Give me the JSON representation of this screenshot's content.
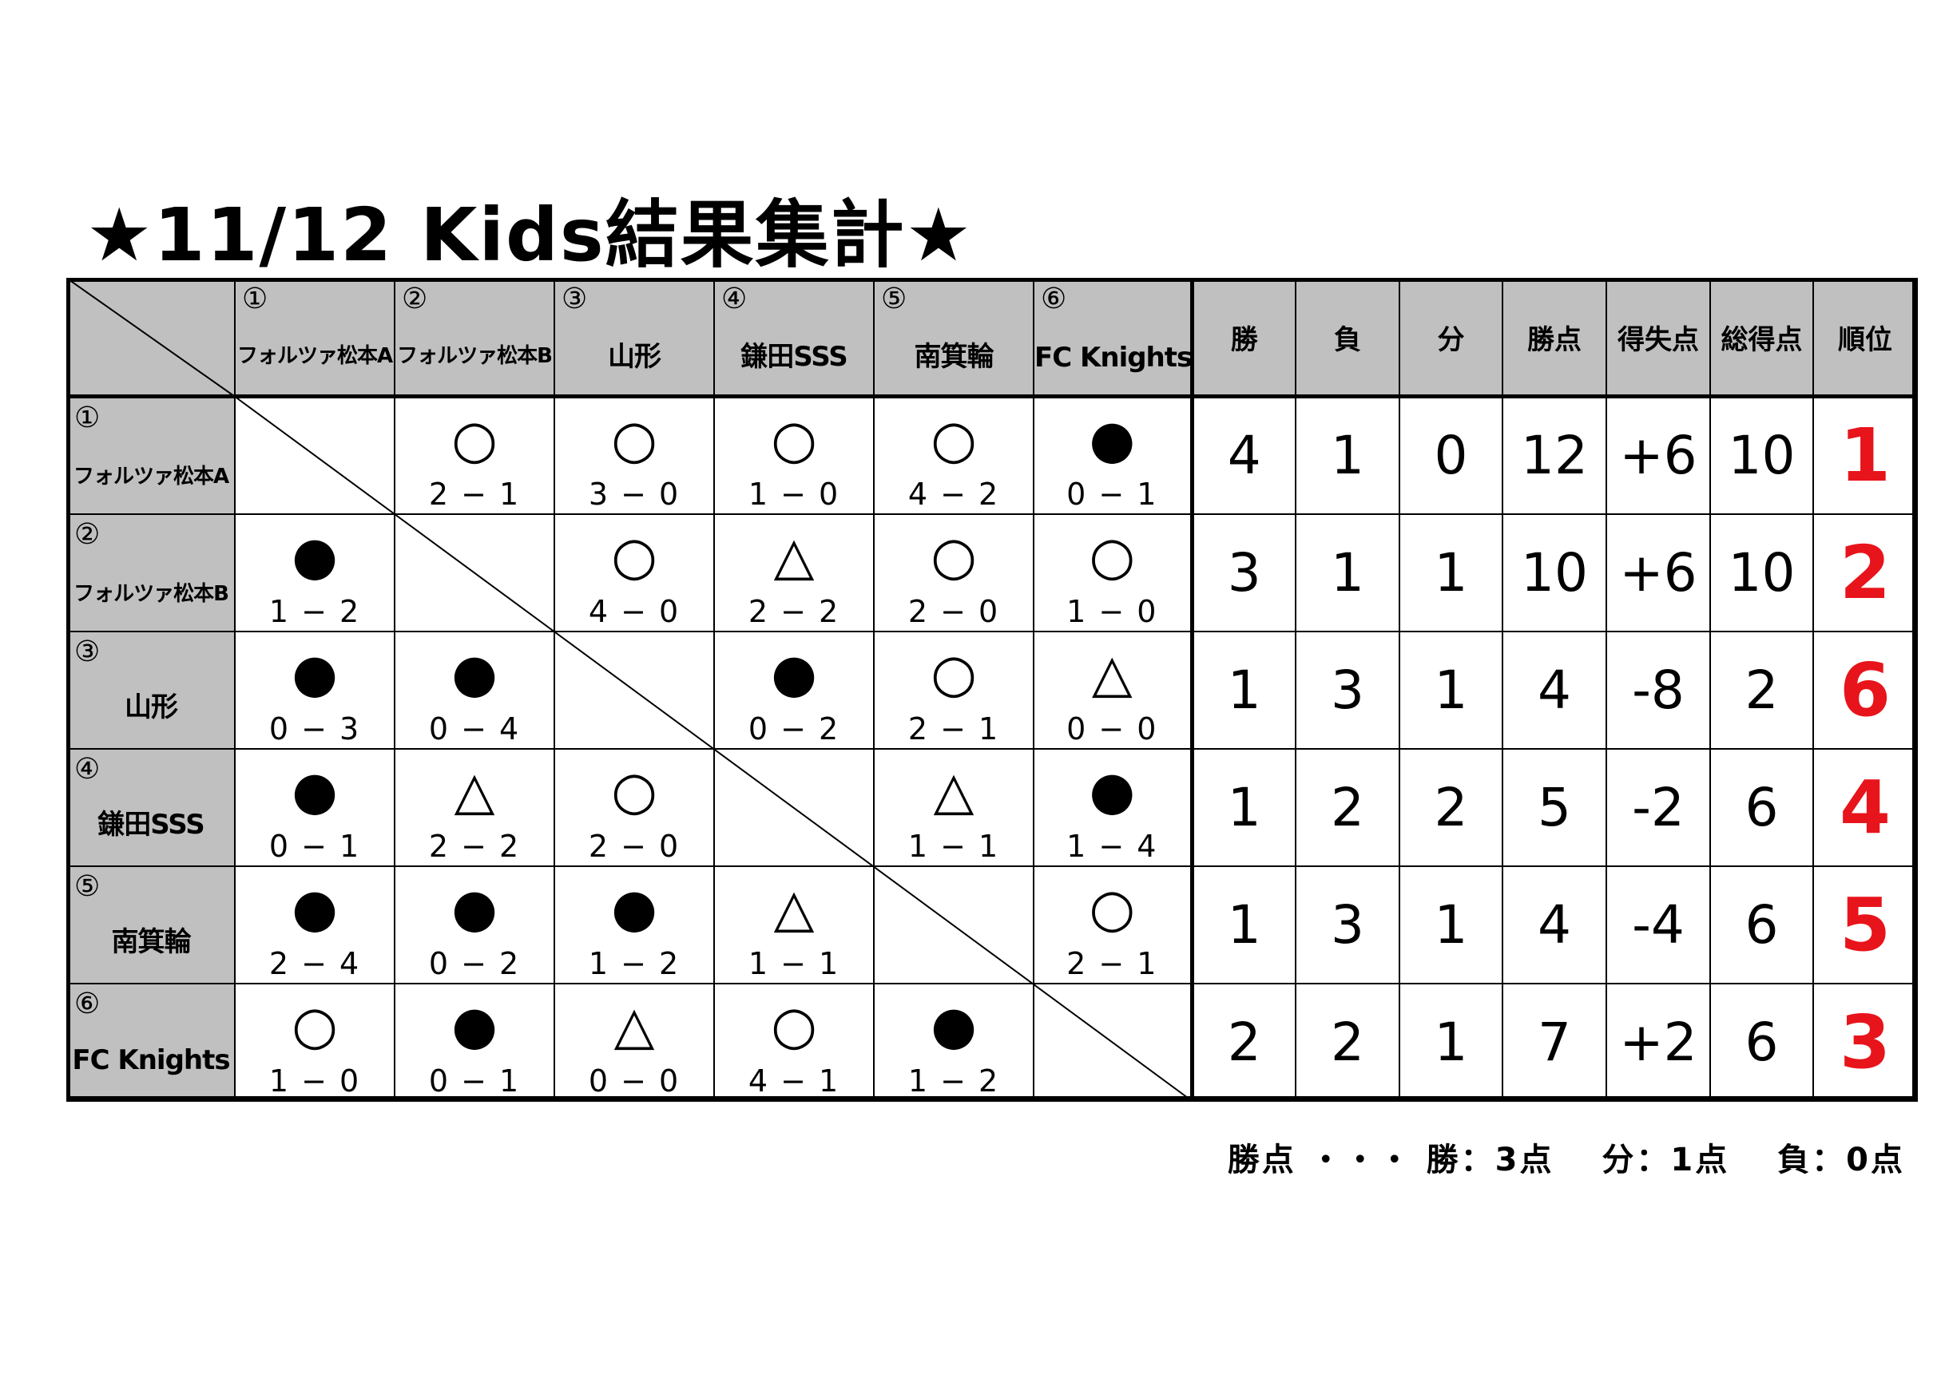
{
  "title": "★11/12  Kids結果集計★",
  "teams": [
    {
      "no": "①",
      "name": "フォルツァ松本A"
    },
    {
      "no": "②",
      "name": "フォルツァ松本B"
    },
    {
      "no": "③",
      "name": "山形"
    },
    {
      "no": "④",
      "name": "鎌田SSS"
    },
    {
      "no": "⑤",
      "name": "南箕輪"
    },
    {
      "no": "⑥",
      "name": "FC Knights"
    }
  ],
  "stat_headers": [
    "勝",
    "負",
    "分",
    "勝点",
    "得失点",
    "総得点",
    "順位"
  ],
  "results": [
    [
      null,
      {
        "mark": "○",
        "score": "2 − 1"
      },
      {
        "mark": "○",
        "score": "3 − 0"
      },
      {
        "mark": "○",
        "score": "1 − 0"
      },
      {
        "mark": "○",
        "score": "4 − 2"
      },
      {
        "mark": "●",
        "score": "0 − 1"
      }
    ],
    [
      {
        "mark": "●",
        "score": "1 − 2"
      },
      null,
      {
        "mark": "○",
        "score": "4 − 0"
      },
      {
        "mark": "△",
        "score": "2 − 2"
      },
      {
        "mark": "○",
        "score": "2 − 0"
      },
      {
        "mark": "○",
        "score": "1 − 0"
      }
    ],
    [
      {
        "mark": "●",
        "score": "0 − 3"
      },
      {
        "mark": "●",
        "score": "0 − 4"
      },
      null,
      {
        "mark": "●",
        "score": "0 − 2"
      },
      {
        "mark": "○",
        "score": "2 − 1"
      },
      {
        "mark": "△",
        "score": "0 − 0"
      }
    ],
    [
      {
        "mark": "●",
        "score": "0 − 1"
      },
      {
        "mark": "△",
        "score": "2 − 2"
      },
      {
        "mark": "○",
        "score": "2 − 0"
      },
      null,
      {
        "mark": "△",
        "score": "1 − 1"
      },
      {
        "mark": "●",
        "score": "1 − 4"
      }
    ],
    [
      {
        "mark": "●",
        "score": "2 − 4"
      },
      {
        "mark": "●",
        "score": "0 − 2"
      },
      {
        "mark": "●",
        "score": "1 − 2"
      },
      {
        "mark": "△",
        "score": "1 − 1"
      },
      null,
      {
        "mark": "○",
        "score": "2 − 1"
      }
    ],
    [
      {
        "mark": "○",
        "score": "1 − 0"
      },
      {
        "mark": "●",
        "score": "0 − 1"
      },
      {
        "mark": "△",
        "score": "0 − 0"
      },
      {
        "mark": "○",
        "score": "4 − 1"
      },
      {
        "mark": "●",
        "score": "1 − 2"
      },
      null
    ]
  ],
  "stats": [
    [
      "4",
      "1",
      "0",
      "12",
      "+6",
      "10",
      "1"
    ],
    [
      "3",
      "1",
      "1",
      "10",
      "+6",
      "10",
      "2"
    ],
    [
      "1",
      "3",
      "1",
      "4",
      "-8",
      "2",
      "6"
    ],
    [
      "1",
      "2",
      "2",
      "5",
      "-2",
      "6",
      "4"
    ],
    [
      "1",
      "3",
      "1",
      "4",
      "-4",
      "6",
      "5"
    ],
    [
      "2",
      "2",
      "1",
      "7",
      "+2",
      "6",
      "3"
    ]
  ],
  "note": "勝点 ・・・ 勝：3点　 分：1点　 負：0点",
  "colors": {
    "header_bg": "#c0c0c0",
    "rank": "#e8141b"
  }
}
